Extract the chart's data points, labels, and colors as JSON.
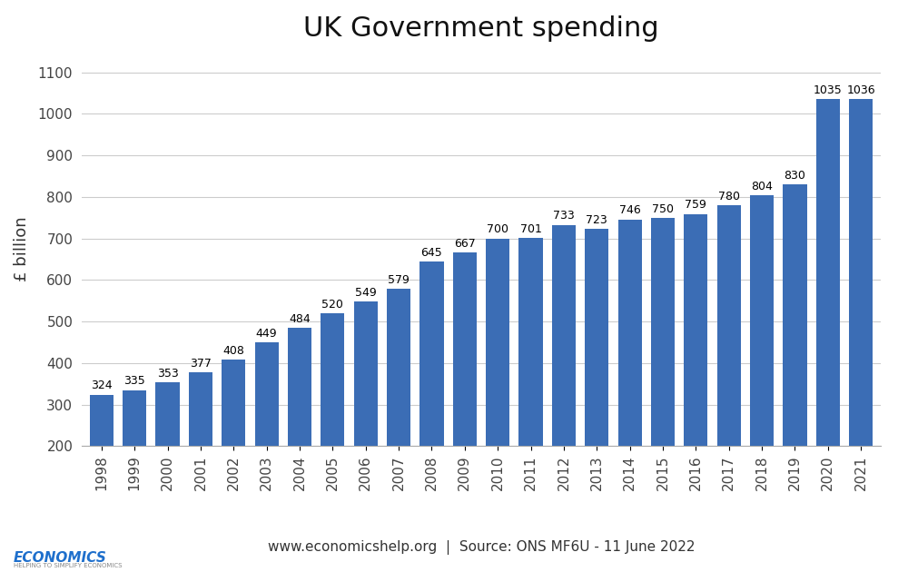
{
  "title": "UK Government spending",
  "ylabel": "£ billion",
  "footer": "www.economicshelp.org  |  Source: ONS MF6U - 11 June 2022",
  "years": [
    1998,
    1999,
    2000,
    2001,
    2002,
    2003,
    2004,
    2005,
    2006,
    2007,
    2008,
    2009,
    2010,
    2011,
    2012,
    2013,
    2014,
    2015,
    2016,
    2017,
    2018,
    2019,
    2020,
    2021
  ],
  "values": [
    324,
    335,
    353,
    377,
    408,
    449,
    484,
    520,
    549,
    579,
    645,
    667,
    700,
    701,
    733,
    723,
    746,
    750,
    759,
    780,
    804,
    830,
    1035,
    1036
  ],
  "bar_color": "#3B6DB5",
  "ylim_min": 200,
  "ylim_max": 1150,
  "yticks": [
    200,
    300,
    400,
    500,
    600,
    700,
    800,
    900,
    1000,
    1100
  ],
  "background_color": "#FFFFFF",
  "title_fontsize": 22,
  "tick_fontsize": 11,
  "ylabel_fontsize": 13,
  "footer_fontsize": 11,
  "value_label_fontsize": 9,
  "logo_text_color": "#1E6FCC",
  "logo_help_color": "#CC2222"
}
